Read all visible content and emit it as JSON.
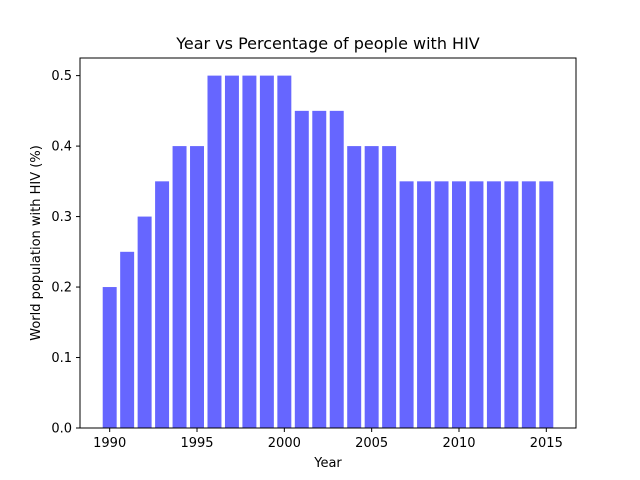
{
  "chart_data": {
    "type": "bar",
    "title": "Year vs Percentage of people with HIV",
    "xlabel": "Year",
    "ylabel": "World population with HIV (%)",
    "x": [
      1990,
      1991,
      1992,
      1993,
      1994,
      1995,
      1996,
      1997,
      1998,
      1999,
      2000,
      2001,
      2002,
      2003,
      2004,
      2005,
      2006,
      2007,
      2008,
      2009,
      2010,
      2011,
      2012,
      2013,
      2014,
      2015
    ],
    "values": [
      0.2,
      0.25,
      0.3,
      0.35,
      0.4,
      0.4,
      0.5,
      0.5,
      0.5,
      0.5,
      0.5,
      0.45,
      0.45,
      0.45,
      0.4,
      0.4,
      0.4,
      0.35,
      0.35,
      0.35,
      0.35,
      0.35,
      0.35,
      0.35,
      0.35,
      0.35
    ],
    "xlim": [
      1988.3,
      1016.7
    ],
    "ylim": [
      0,
      0.525
    ],
    "xticks": [
      "1990",
      "1995",
      "2000",
      "2005",
      "2010",
      "2015"
    ],
    "yticks": [
      "0.0",
      "0.1",
      "0.2",
      "0.3",
      "0.4",
      "0.5"
    ],
    "bar_color": "#6666ff",
    "grid": false
  }
}
